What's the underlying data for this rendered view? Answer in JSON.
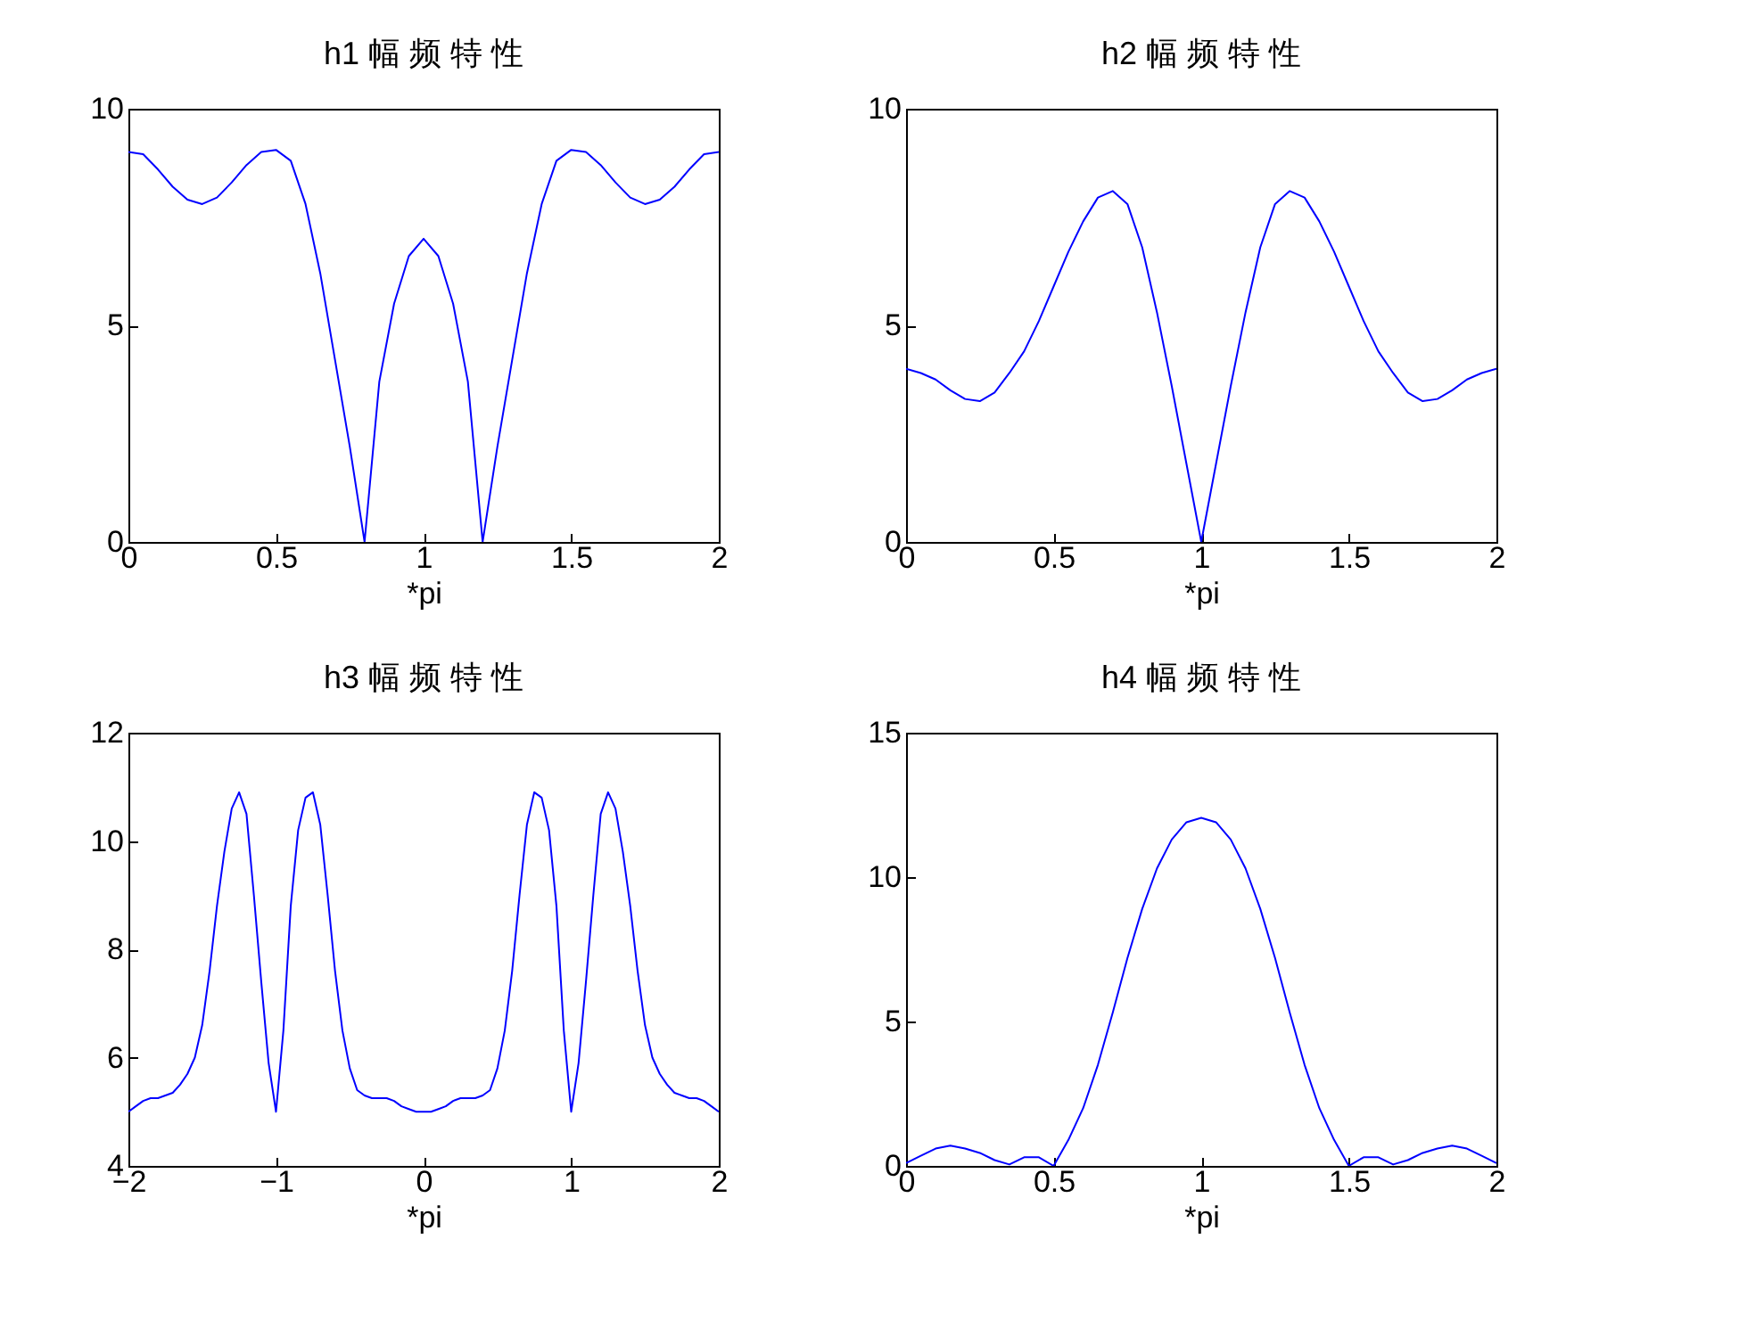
{
  "chart_data": [
    {
      "type": "line",
      "title": "h1 幅 频 特 性",
      "xlabel": "*pi",
      "xlim": [
        0,
        2
      ],
      "xticks": [
        0,
        0.5,
        1,
        1.5,
        2
      ],
      "ylim": [
        0,
        10
      ],
      "yticks": [
        0,
        5,
        10
      ],
      "grid": false,
      "legend": false,
      "x": [
        0,
        0.05,
        0.1,
        0.15,
        0.2,
        0.25,
        0.3,
        0.35,
        0.4,
        0.45,
        0.5,
        0.55,
        0.6,
        0.65,
        0.7,
        0.75,
        0.8,
        0.85,
        0.9,
        0.95,
        1,
        1.05,
        1.1,
        1.15,
        1.2,
        1.25,
        1.3,
        1.35,
        1.4,
        1.45,
        1.5,
        1.55,
        1.6,
        1.65,
        1.7,
        1.75,
        1.8,
        1.85,
        1.9,
        1.95,
        2
      ],
      "series": [
        {
          "color": "#0000ff",
          "values": [
            9.0,
            8.95,
            8.6,
            8.2,
            7.9,
            7.8,
            7.95,
            8.3,
            8.7,
            9.0,
            9.05,
            8.8,
            7.8,
            6.2,
            4.2,
            2.2,
            0,
            3.7,
            5.5,
            6.6,
            7.0,
            6.6,
            5.5,
            3.7,
            0,
            2.2,
            4.2,
            6.2,
            7.8,
            8.8,
            9.05,
            9.0,
            8.7,
            8.3,
            7.95,
            7.8,
            7.9,
            8.2,
            8.6,
            8.95,
            9.0
          ]
        }
      ]
    },
    {
      "type": "line",
      "title": "h2 幅 频 特 性",
      "xlabel": "*pi",
      "xlim": [
        0,
        2
      ],
      "xticks": [
        0,
        0.5,
        1,
        1.5,
        2
      ],
      "ylim": [
        0,
        10
      ],
      "yticks": [
        0,
        5,
        10
      ],
      "grid": false,
      "legend": false,
      "x": [
        0,
        0.05,
        0.1,
        0.15,
        0.2,
        0.25,
        0.3,
        0.35,
        0.4,
        0.45,
        0.5,
        0.55,
        0.6,
        0.65,
        0.7,
        0.75,
        0.8,
        0.85,
        0.9,
        0.95,
        1,
        1.05,
        1.1,
        1.15,
        1.2,
        1.25,
        1.3,
        1.35,
        1.4,
        1.45,
        1.5,
        1.55,
        1.6,
        1.65,
        1.7,
        1.75,
        1.8,
        1.85,
        1.9,
        1.95,
        2
      ],
      "series": [
        {
          "color": "#0000ff",
          "values": [
            4.0,
            3.9,
            3.75,
            3.5,
            3.3,
            3.25,
            3.45,
            3.9,
            4.4,
            5.1,
            5.9,
            6.7,
            7.4,
            7.95,
            8.1,
            7.8,
            6.8,
            5.3,
            3.6,
            1.8,
            0,
            1.8,
            3.6,
            5.3,
            6.8,
            7.8,
            8.1,
            7.95,
            7.4,
            6.7,
            5.9,
            5.1,
            4.4,
            3.9,
            3.45,
            3.25,
            3.3,
            3.5,
            3.75,
            3.9,
            4.0
          ]
        }
      ]
    },
    {
      "type": "line",
      "title": "h3 幅 频 特 性",
      "xlabel": "*pi",
      "xlim": [
        -2,
        2
      ],
      "xticks": [
        -2,
        -1,
        0,
        1,
        2
      ],
      "ylim": [
        4,
        12
      ],
      "yticks": [
        4,
        6,
        8,
        10,
        12
      ],
      "grid": false,
      "legend": false,
      "x": [
        -2,
        -1.95,
        -1.9,
        -1.85,
        -1.8,
        -1.75,
        -1.7,
        -1.65,
        -1.6,
        -1.55,
        -1.5,
        -1.45,
        -1.4,
        -1.35,
        -1.3,
        -1.25,
        -1.2,
        -1.15,
        -1.1,
        -1.05,
        -1,
        -0.95,
        -0.9,
        -0.85,
        -0.8,
        -0.75,
        -0.7,
        -0.65,
        -0.6,
        -0.55,
        -0.5,
        -0.45,
        -0.4,
        -0.35,
        -0.3,
        -0.25,
        -0.2,
        -0.15,
        -0.1,
        -0.05,
        0,
        0.05,
        0.1,
        0.15,
        0.2,
        0.25,
        0.3,
        0.35,
        0.4,
        0.45,
        0.5,
        0.55,
        0.6,
        0.65,
        0.7,
        0.75,
        0.8,
        0.85,
        0.9,
        0.95,
        1,
        1.05,
        1.1,
        1.15,
        1.2,
        1.25,
        1.3,
        1.35,
        1.4,
        1.45,
        1.5,
        1.55,
        1.6,
        1.65,
        1.7,
        1.75,
        1.8,
        1.85,
        1.9,
        1.95,
        2
      ],
      "series": [
        {
          "color": "#0000ff",
          "values": [
            5.0,
            5.1,
            5.2,
            5.25,
            5.25,
            5.3,
            5.35,
            5.5,
            5.7,
            6.0,
            6.6,
            7.6,
            8.8,
            9.8,
            10.6,
            10.9,
            10.5,
            9.0,
            7.4,
            5.9,
            5.0,
            6.5,
            8.8,
            10.2,
            10.8,
            10.9,
            10.3,
            9.0,
            7.6,
            6.5,
            5.8,
            5.4,
            5.3,
            5.25,
            5.25,
            5.25,
            5.2,
            5.1,
            5.05,
            5.0,
            5.0,
            5.0,
            5.05,
            5.1,
            5.2,
            5.25,
            5.25,
            5.25,
            5.3,
            5.4,
            5.8,
            6.5,
            7.6,
            9.0,
            10.3,
            10.9,
            10.8,
            10.2,
            8.8,
            6.5,
            5.0,
            5.9,
            7.4,
            9.0,
            10.5,
            10.9,
            10.6,
            9.8,
            8.8,
            7.6,
            6.6,
            6.0,
            5.7,
            5.5,
            5.35,
            5.3,
            5.25,
            5.25,
            5.2,
            5.1,
            5.0
          ]
        }
      ]
    },
    {
      "type": "line",
      "title": "h4 幅 频 特 性",
      "xlabel": "*pi",
      "xlim": [
        0,
        2
      ],
      "xticks": [
        0,
        0.5,
        1,
        1.5,
        2
      ],
      "ylim": [
        0,
        15
      ],
      "yticks": [
        0,
        5,
        10,
        15
      ],
      "grid": false,
      "legend": false,
      "x": [
        0,
        0.05,
        0.1,
        0.15,
        0.2,
        0.25,
        0.3,
        0.35,
        0.4,
        0.45,
        0.5,
        0.55,
        0.6,
        0.65,
        0.7,
        0.75,
        0.8,
        0.85,
        0.9,
        0.95,
        1,
        1.05,
        1.1,
        1.15,
        1.2,
        1.25,
        1.3,
        1.35,
        1.4,
        1.45,
        1.5,
        1.55,
        1.6,
        1.65,
        1.7,
        1.75,
        1.8,
        1.85,
        1.9,
        1.95,
        2
      ],
      "series": [
        {
          "color": "#0000ff",
          "values": [
            0.1,
            0.35,
            0.6,
            0.7,
            0.6,
            0.45,
            0.2,
            0.05,
            0.3,
            0.3,
            0,
            0.9,
            2.0,
            3.5,
            5.3,
            7.2,
            8.9,
            10.3,
            11.3,
            11.9,
            12.05,
            11.9,
            11.3,
            10.3,
            8.9,
            7.2,
            5.3,
            3.5,
            2.0,
            0.9,
            0,
            0.3,
            0.3,
            0.05,
            0.2,
            0.45,
            0.6,
            0.7,
            0.6,
            0.35,
            0.1
          ]
        }
      ]
    }
  ]
}
